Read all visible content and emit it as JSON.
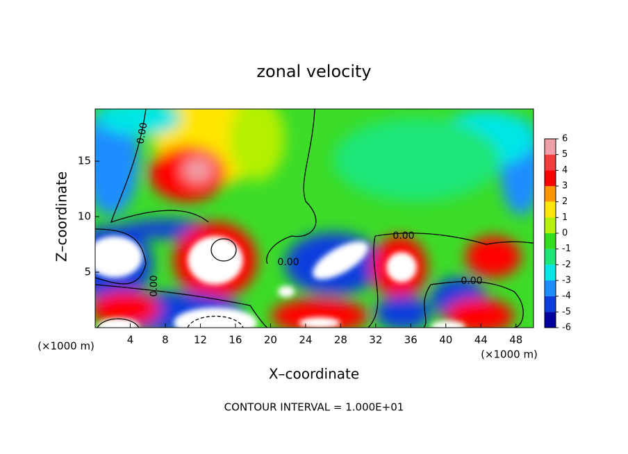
{
  "chart_data": {
    "type": "contour",
    "title": "zonal velocity",
    "x_label": "X–coordinate",
    "y_label": "Z–coordinate",
    "x_unit": "(×1000 m)",
    "y_unit": "(×1000 m)",
    "footer": "CONTOUR INTERVAL = 1.000E+01",
    "contour_labels": [
      "0.00",
      "0.00",
      "0.00",
      "0.00",
      "0.00"
    ],
    "xlim": [
      0,
      50
    ],
    "xticks": [
      4,
      8,
      12,
      16,
      20,
      24,
      28,
      32,
      36,
      40,
      44,
      48
    ],
    "ylim": [
      0,
      19.7
    ],
    "yticks": [
      5,
      10,
      15
    ],
    "colorbar": {
      "ticks": [
        6,
        5,
        4,
        3,
        2,
        1,
        0,
        -1,
        -2,
        -3,
        -4,
        -5,
        -6
      ],
      "colors": [
        "#f0a0a8",
        "#f03c3c",
        "#ff0000",
        "#ff9600",
        "#ffe600",
        "#b4f000",
        "#32dc1e",
        "#1ee678",
        "#00e6e6",
        "#1e8cff",
        "#0a3cdc",
        "#0000a0"
      ]
    }
  }
}
